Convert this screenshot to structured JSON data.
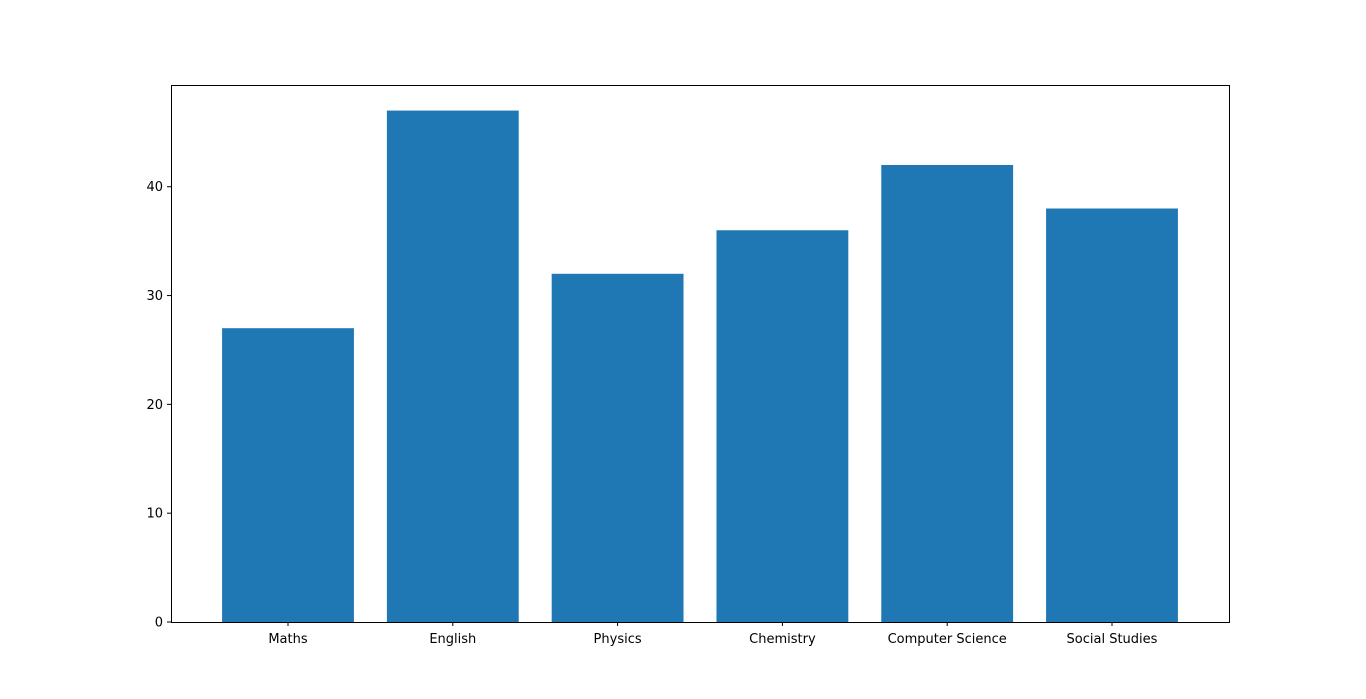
{
  "chart_data": {
    "type": "bar",
    "categories": [
      "Maths",
      "English",
      "Physics",
      "Chemistry",
      "Computer Science",
      "Social Studies"
    ],
    "values": [
      27,
      47,
      32,
      36,
      42,
      38
    ],
    "title": "",
    "xlabel": "",
    "ylabel": "",
    "ylim": [
      0,
      49.35
    ],
    "yticks": [
      0,
      10,
      20,
      30,
      40
    ],
    "grid": false,
    "bar_color": "#1f77b4"
  }
}
